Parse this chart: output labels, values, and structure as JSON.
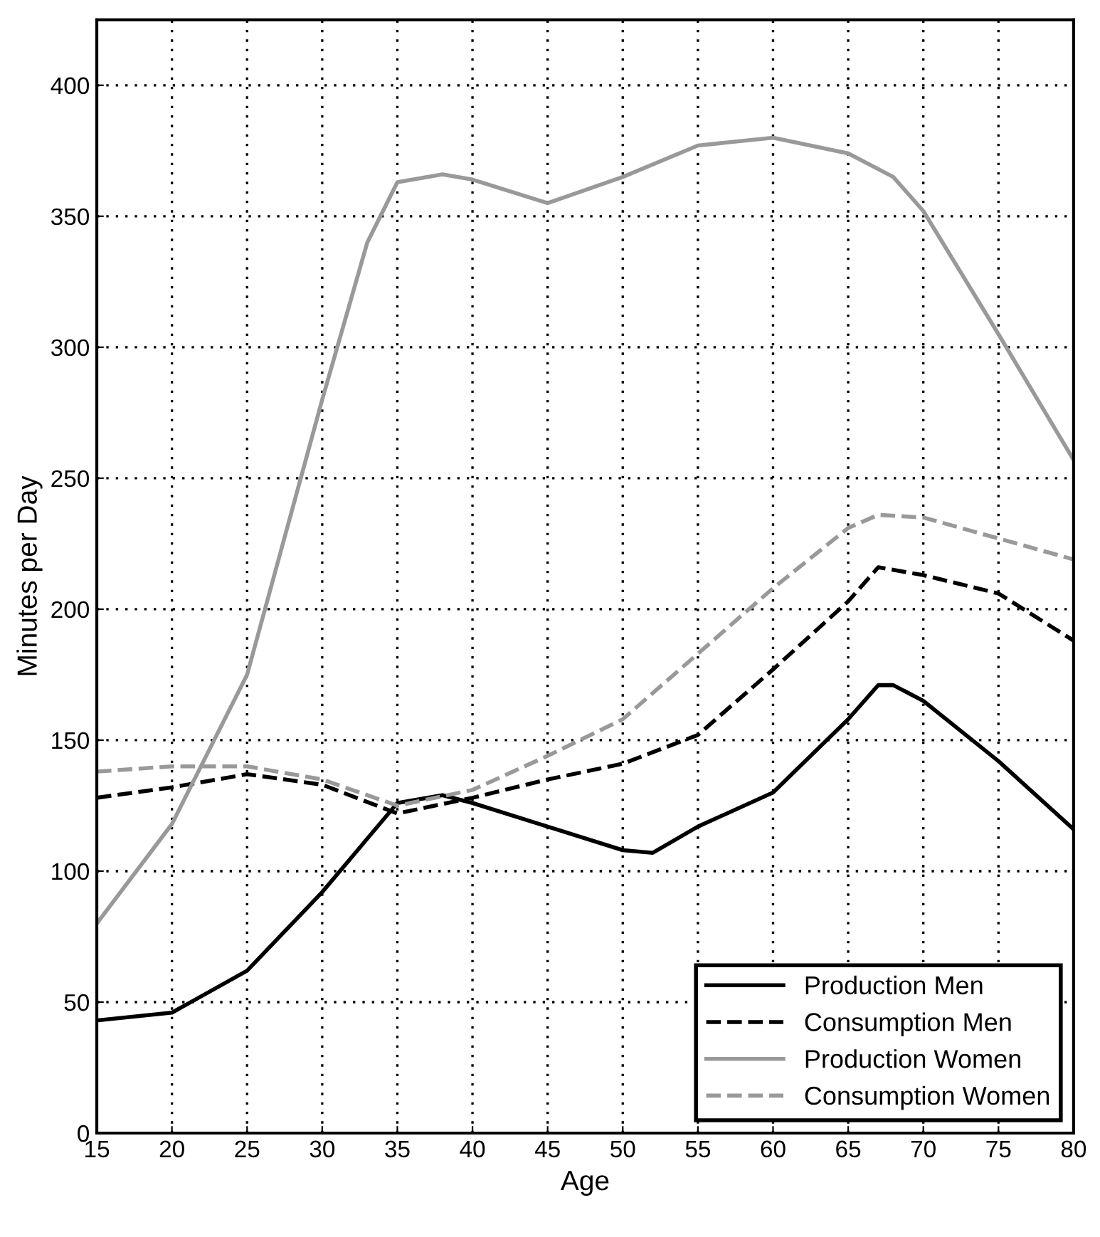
{
  "chart_data": {
    "type": "line",
    "xlabel": "Age",
    "ylabel": "Minutes per Day",
    "xlim": [
      15,
      80
    ],
    "xticks": [
      15,
      20,
      25,
      30,
      35,
      40,
      45,
      50,
      55,
      60,
      65,
      70,
      75,
      80
    ],
    "ylim": [
      0,
      425
    ],
    "yticks": [
      0,
      50,
      100,
      150,
      200,
      250,
      300,
      350,
      400
    ],
    "grid": true,
    "legend": "bottom right",
    "series": [
      {
        "name": "Production Men",
        "color": "#000000",
        "line_style": "solid",
        "x": [
          15,
          20,
          25,
          30,
          35,
          38,
          40,
          45,
          50,
          52,
          55,
          60,
          65,
          67,
          68,
          70,
          75,
          80
        ],
        "values": [
          43,
          46,
          62,
          92,
          126,
          129,
          126,
          117,
          108,
          107,
          117,
          130,
          158,
          171,
          171,
          165,
          142,
          116
        ]
      },
      {
        "name": "Consumption Men",
        "color": "#000000",
        "line_style": "dashed",
        "x": [
          15,
          20,
          25,
          30,
          35,
          40,
          45,
          50,
          55,
          60,
          65,
          67,
          70,
          75,
          80
        ],
        "values": [
          128,
          132,
          137,
          133,
          122,
          128,
          135,
          141,
          152,
          177,
          203,
          216,
          213,
          206,
          188
        ]
      },
      {
        "name": "Production Women",
        "color": "#999999",
        "line_style": "solid",
        "x": [
          15,
          20,
          25,
          30,
          33,
          35,
          38,
          40,
          45,
          50,
          55,
          60,
          65,
          68,
          70,
          75,
          80
        ],
        "values": [
          80,
          118,
          175,
          280,
          340,
          363,
          366,
          364,
          355,
          365,
          377,
          380,
          374,
          365,
          352,
          305,
          257
        ]
      },
      {
        "name": "Consumption Women",
        "color": "#999999",
        "line_style": "dashed",
        "x": [
          15,
          20,
          25,
          30,
          35,
          40,
          45,
          50,
          55,
          60,
          65,
          67,
          70,
          75,
          80
        ],
        "values": [
          138,
          140,
          140,
          135,
          125,
          131,
          144,
          158,
          183,
          208,
          231,
          236,
          235,
          227,
          219
        ]
      }
    ]
  }
}
